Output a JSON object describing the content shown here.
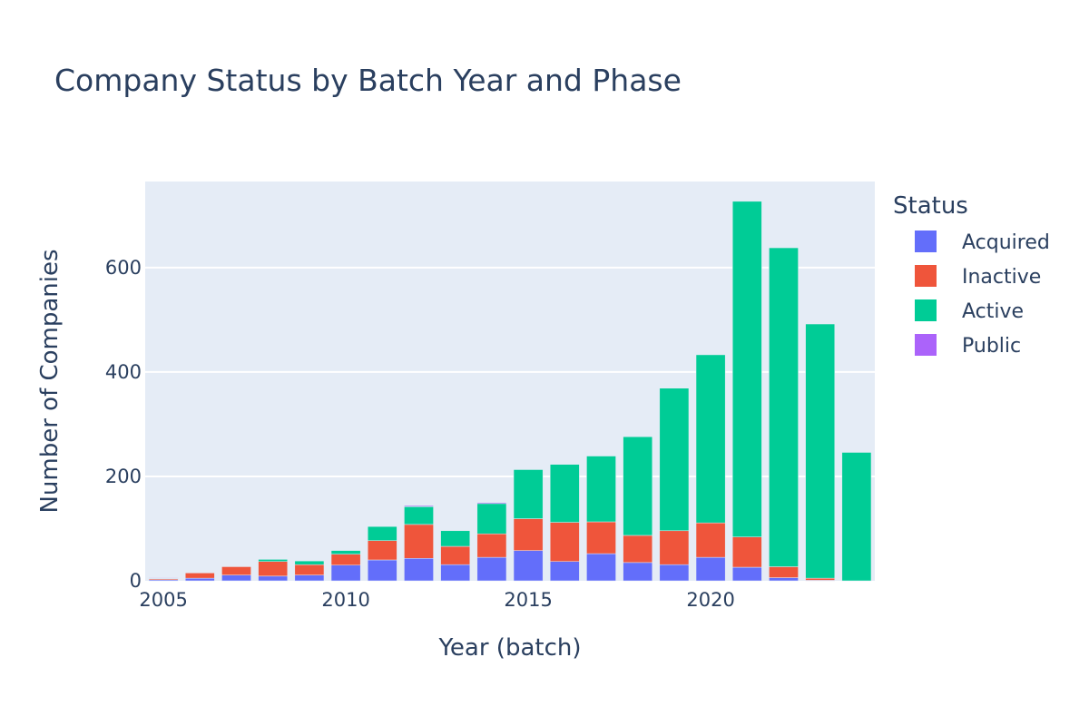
{
  "chart_data": {
    "type": "bar",
    "barmode": "stack",
    "title": "Company Status by Batch Year and Phase",
    "xlabel": "Year (batch)",
    "ylabel": "Number of Companies",
    "legend_title": "Status",
    "legend_position": "right",
    "grid": true,
    "xlim": [
      2004.5,
      2024.5
    ],
    "ylim": [
      0,
      765
    ],
    "x_ticks": [
      2005,
      2010,
      2015,
      2020
    ],
    "y_ticks": [
      0,
      200,
      400,
      600
    ],
    "x": [
      2005,
      2006,
      2007,
      2008,
      2009,
      2010,
      2011,
      2012,
      2013,
      2014,
      2015,
      2016,
      2017,
      2018,
      2019,
      2020,
      2021,
      2022,
      2023,
      2024
    ],
    "series": [
      {
        "name": "Acquired",
        "color": "#636efa",
        "values": [
          2,
          5,
          11,
          9,
          11,
          30,
          40,
          43,
          31,
          45,
          58,
          37,
          52,
          35,
          31,
          45,
          26,
          6,
          1,
          0
        ]
      },
      {
        "name": "Inactive",
        "color": "#ef553b",
        "values": [
          2,
          10,
          16,
          28,
          20,
          21,
          37,
          65,
          35,
          45,
          61,
          75,
          61,
          52,
          65,
          66,
          58,
          21,
          4,
          0
        ]
      },
      {
        "name": "Active",
        "color": "#00cc96",
        "values": [
          1,
          0,
          0,
          4,
          7,
          7,
          27,
          34,
          30,
          58,
          94,
          111,
          126,
          189,
          273,
          322,
          643,
          611,
          487,
          246
        ]
      },
      {
        "name": "Public",
        "color": "#ab63fa",
        "values": [
          1,
          0,
          0,
          0,
          0,
          0,
          0,
          2,
          0,
          2,
          0,
          0,
          0,
          0,
          0,
          0,
          0,
          0,
          0,
          0
        ]
      }
    ]
  }
}
